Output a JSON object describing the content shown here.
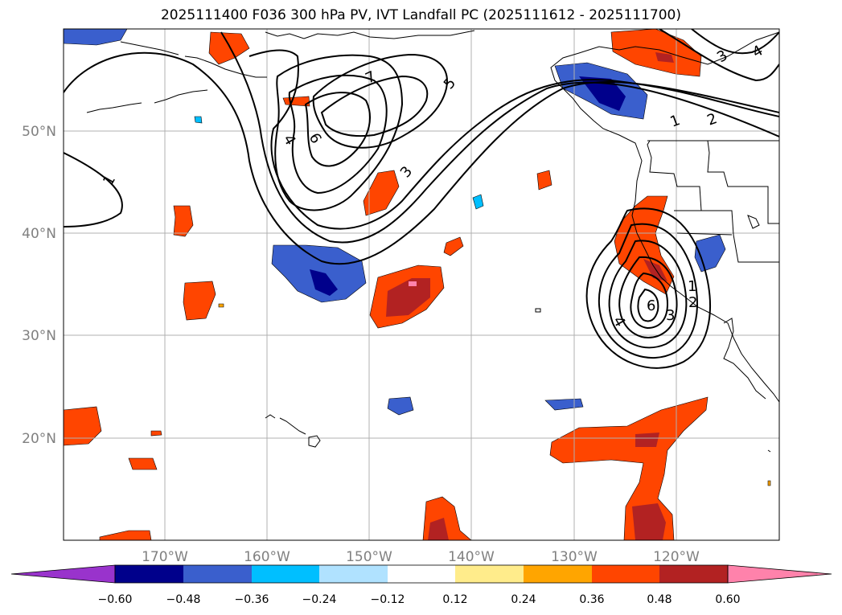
{
  "title": "2025111400 F036 300 hPa PV, IVT Landfall PC (2025111612 - 2025111700)",
  "lon_labels": [
    "170°W",
    "160°W",
    "150°W",
    "140°W",
    "130°W",
    "120°W"
  ],
  "lat_labels": [
    "50°N",
    "40°N",
    "30°N",
    "20°N"
  ],
  "contour_labels": [
    "1",
    "2",
    "3",
    "4",
    "5",
    "6",
    "7"
  ],
  "colorbar": {
    "colors": [
      "#9933cc",
      "#00008b",
      "#3a5fcd",
      "#00bfff",
      "#b0e2ff",
      "#ffffff",
      "#ffec8b",
      "#ffa500",
      "#ff4500",
      "#b22222",
      "#ff82ab"
    ],
    "ticks": [
      "−0.60",
      "−0.48",
      "−0.36",
      "−0.24",
      "−0.12",
      "0.12",
      "0.24",
      "0.36",
      "0.48",
      "0.60"
    ]
  },
  "map": {
    "lon_range": [
      "180°W",
      "110°W"
    ],
    "lat_range": [
      "10°N",
      "60°N"
    ],
    "gridline_color": "#b0b0b0",
    "tick_label_color": "#808080"
  }
}
